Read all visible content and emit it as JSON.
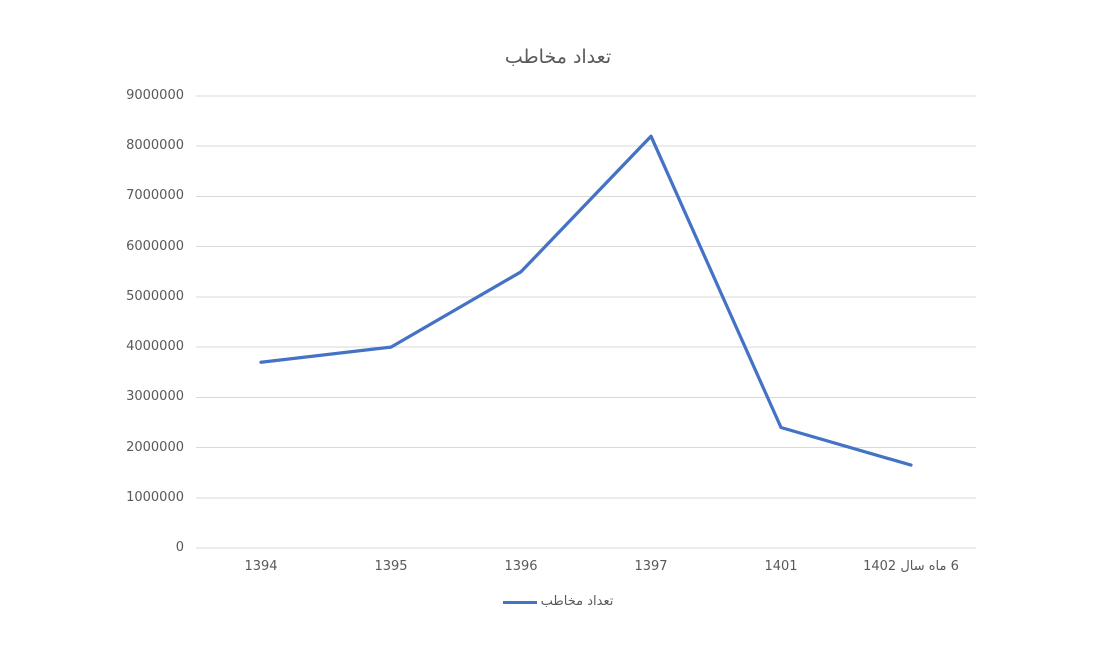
{
  "chart_data": {
    "type": "line",
    "title": "تعداد مخاطب",
    "categories": [
      "1394",
      "1395",
      "1396",
      "1397",
      "1401",
      "6 ماه سال 1402"
    ],
    "series": [
      {
        "name": "تعداد مخاطب",
        "color": "#4472C4",
        "values": [
          3700000,
          4000000,
          5500000,
          8200000,
          2400000,
          1650000
        ]
      }
    ],
    "xlabel": "",
    "ylabel": "",
    "ylim": [
      0,
      9000000
    ],
    "ytick_step": 1000000,
    "ytick_labels": [
      "0",
      "1000000",
      "2000000",
      "3000000",
      "4000000",
      "5000000",
      "6000000",
      "7000000",
      "8000000",
      "9000000"
    ],
    "grid": "horizontal",
    "legend_position": "bottom",
    "colors": {
      "gridline": "#D9D9D9",
      "axis_text": "#595959",
      "title_text": "#595959",
      "background": "#FFFFFF"
    }
  }
}
